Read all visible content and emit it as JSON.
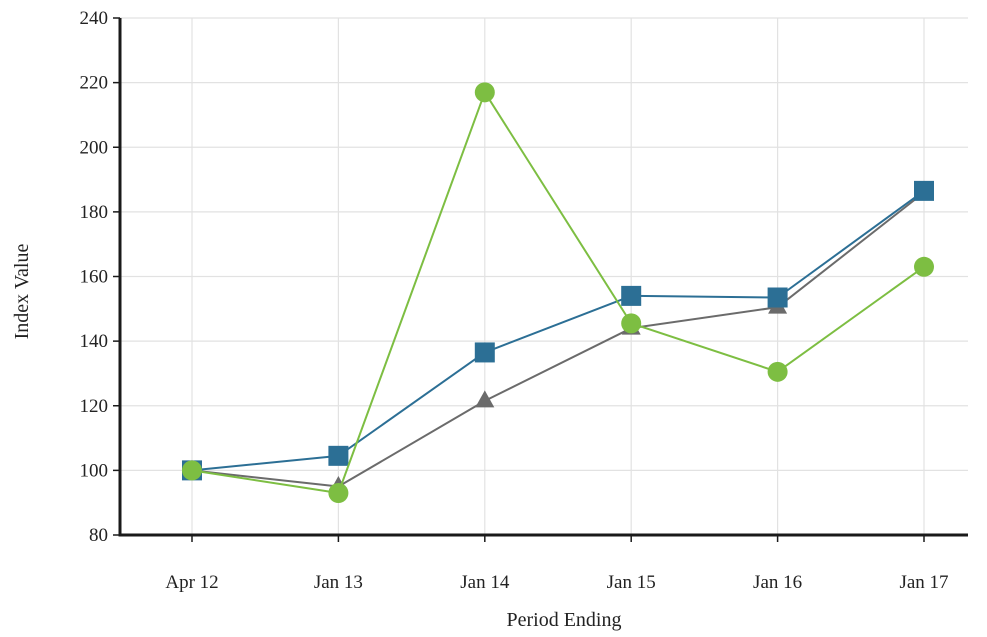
{
  "chart_data": {
    "type": "line",
    "categories": [
      "Apr 12",
      "Jan 13",
      "Jan 14",
      "Jan 15",
      "Jan 16",
      "Jan 17"
    ],
    "xlabel": "Period Ending",
    "ylabel": "Index Value",
    "ylim": [
      80,
      240
    ],
    "yticks": [
      80,
      100,
      120,
      140,
      160,
      180,
      200,
      220,
      240
    ],
    "grid": true,
    "series": [
      {
        "marker": "triangle",
        "color": "#6b6b6b",
        "values": [
          100,
          95,
          121.5,
          144,
          150.5,
          186
        ]
      },
      {
        "marker": "square",
        "color": "#2c6f95",
        "values": [
          100,
          104.5,
          136.5,
          154,
          153.5,
          186.5
        ]
      },
      {
        "marker": "circle",
        "color": "#7dbe42",
        "values": [
          100,
          93,
          217,
          145.5,
          130.5,
          163
        ]
      }
    ]
  }
}
